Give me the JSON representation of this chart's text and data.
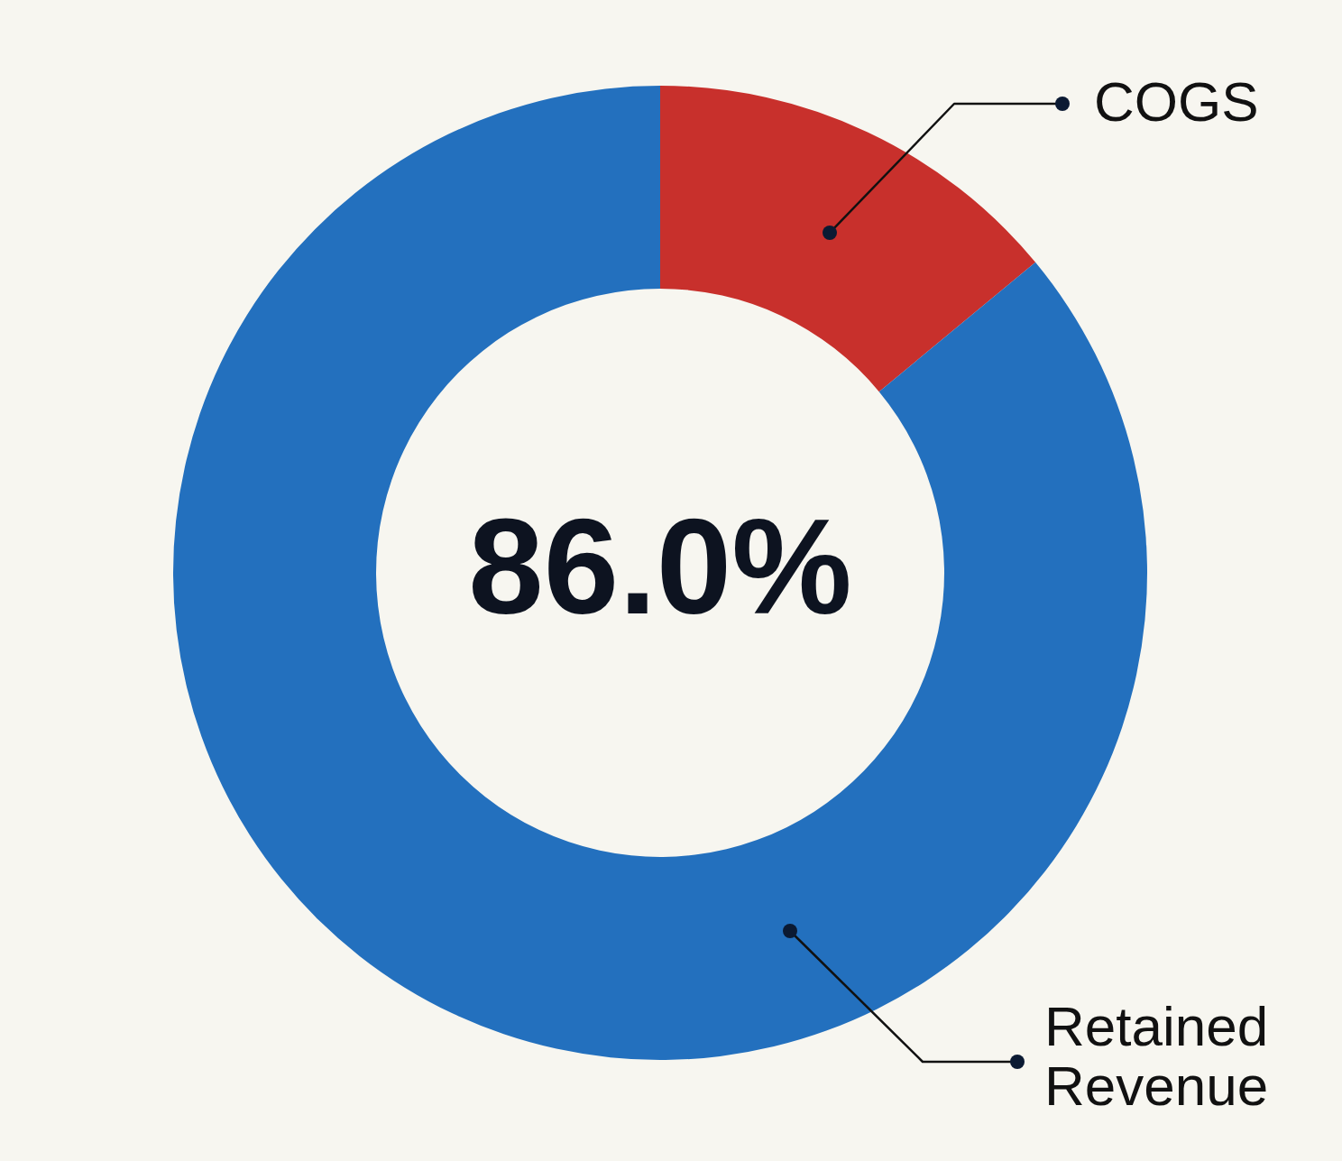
{
  "chart_data": {
    "type": "donut",
    "categories": [
      "COGS",
      "Retained Revenue"
    ],
    "values": [
      14,
      86
    ],
    "colors": [
      "#c8302c",
      "#2370be"
    ],
    "annotations": [
      "86.0%"
    ]
  }
}
